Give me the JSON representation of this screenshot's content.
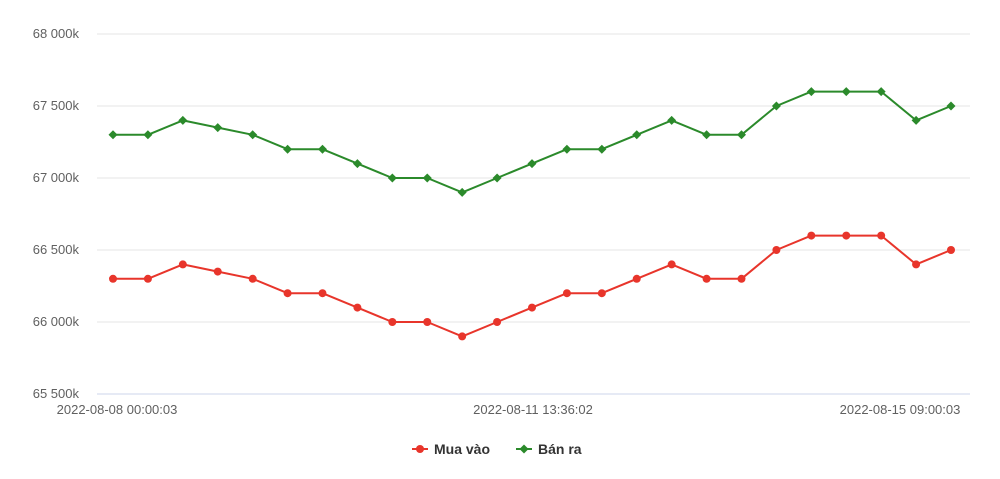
{
  "chart_data": {
    "type": "line",
    "x": [
      "2022-08-08 00:00:03",
      "",
      "",
      "",
      "",
      "",
      "",
      "",
      "",
      "",
      "",
      "2022-08-11 13:36:02",
      "",
      "",
      "",
      "",
      "",
      "",
      "",
      "",
      "",
      "",
      "",
      "",
      "2022-08-15 09:00:03"
    ],
    "x_tick_labels": [
      "2022-08-08 00:00:03",
      "2022-08-11 13:36:02",
      "2022-08-15 09:00:03"
    ],
    "x_tick_indices": [
      0,
      10,
      24
    ],
    "ylim": [
      65500,
      68000
    ],
    "y_ticks": [
      65500,
      66000,
      66500,
      67000,
      67500,
      68000
    ],
    "y_tick_labels": [
      "65 500k",
      "66 000k",
      "66 500k",
      "67 000k",
      "67 500k",
      "68 000k"
    ],
    "grid": true,
    "legend_position": "bottom-center",
    "series": [
      {
        "name": "Mua vào",
        "color": "#e8352b",
        "marker": "circle",
        "values": [
          66300,
          66300,
          66400,
          66350,
          66300,
          66200,
          66200,
          66100,
          66000,
          66000,
          65900,
          66000,
          66100,
          66200,
          66200,
          66300,
          66400,
          66300,
          66300,
          66500,
          66600,
          66600,
          66600,
          66400,
          66500
        ]
      },
      {
        "name": "Bán ra",
        "color": "#2b8a2b",
        "marker": "diamond",
        "values": [
          67300,
          67300,
          67400,
          67350,
          67300,
          67200,
          67200,
          67100,
          67000,
          67000,
          66900,
          67000,
          67100,
          67200,
          67200,
          67300,
          67400,
          67300,
          67300,
          67500,
          67600,
          67600,
          67600,
          67400,
          67500
        ]
      }
    ]
  }
}
